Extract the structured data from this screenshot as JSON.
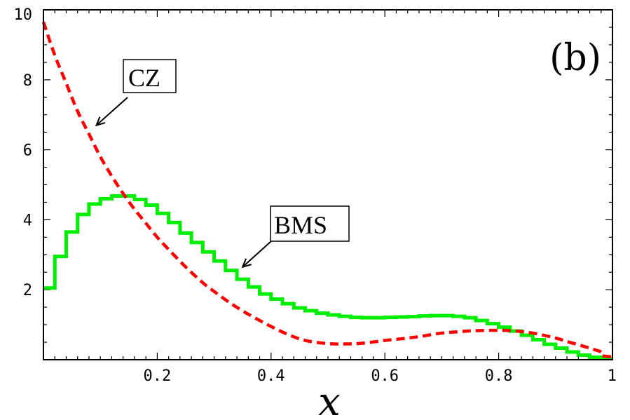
{
  "chart_data": {
    "type": "line",
    "panel_label": "(b)",
    "xlabel": "x",
    "ylabel": "",
    "xlim": [
      0,
      1
    ],
    "ylim": [
      0,
      10
    ],
    "x_ticks": [
      {
        "value": 0.2,
        "label": "0.2"
      },
      {
        "value": 0.4,
        "label": "0.4"
      },
      {
        "value": 0.6,
        "label": "0.6"
      },
      {
        "value": 0.8,
        "label": "0.8"
      },
      {
        "value": 1.0,
        "label": "1"
      }
    ],
    "y_ticks": [
      {
        "value": 2,
        "label": "2"
      },
      {
        "value": 4,
        "label": "4"
      },
      {
        "value": 6,
        "label": "6"
      },
      {
        "value": 8,
        "label": "8"
      },
      {
        "value": 10,
        "label": "10"
      }
    ],
    "series": [
      {
        "name": "CZ",
        "style": "dashed",
        "color": "#ff0000",
        "x": [
          0.0,
          0.02,
          0.04,
          0.06,
          0.08,
          0.1,
          0.12,
          0.14,
          0.16,
          0.18,
          0.2,
          0.22,
          0.25,
          0.28,
          0.3,
          0.33,
          0.36,
          0.4,
          0.43,
          0.46,
          0.5,
          0.53,
          0.56,
          0.6,
          0.63,
          0.66,
          0.7,
          0.73,
          0.76,
          0.8,
          0.83,
          0.86,
          0.9,
          0.92,
          0.95,
          0.97,
          0.98,
          0.981,
          1.0
        ],
        "y": [
          9.65,
          8.7,
          7.9,
          7.1,
          6.45,
          5.8,
          5.25,
          4.75,
          4.3,
          3.9,
          3.5,
          3.15,
          2.65,
          2.2,
          1.95,
          1.6,
          1.3,
          0.95,
          0.72,
          0.55,
          0.46,
          0.45,
          0.47,
          0.55,
          0.6,
          0.66,
          0.76,
          0.8,
          0.83,
          0.84,
          0.82,
          0.76,
          0.62,
          0.52,
          0.38,
          0.28,
          0.22,
          0.12,
          0.08
        ]
      },
      {
        "name": "BMS",
        "style": "step",
        "color": "#00ee00",
        "bin_width": 0.02,
        "x_start": 0.0,
        "values": [
          2.05,
          2.95,
          3.65,
          4.15,
          4.45,
          4.6,
          4.68,
          4.68,
          4.58,
          4.42,
          4.18,
          3.92,
          3.62,
          3.35,
          3.08,
          2.82,
          2.55,
          2.3,
          2.08,
          1.88,
          1.73,
          1.6,
          1.48,
          1.4,
          1.33,
          1.28,
          1.24,
          1.21,
          1.2,
          1.2,
          1.21,
          1.22,
          1.23,
          1.25,
          1.26,
          1.26,
          1.24,
          1.2,
          1.12,
          1.03,
          0.93,
          0.82,
          0.7,
          0.57,
          0.44,
          0.33,
          0.22,
          0.13,
          0.07,
          0.04
        ]
      }
    ],
    "annotations": [
      {
        "text": "CZ",
        "arrow_to": [
          0.093,
          6.7
        ]
      },
      {
        "text": "BMS",
        "arrow_to": [
          0.35,
          2.65
        ]
      }
    ]
  }
}
